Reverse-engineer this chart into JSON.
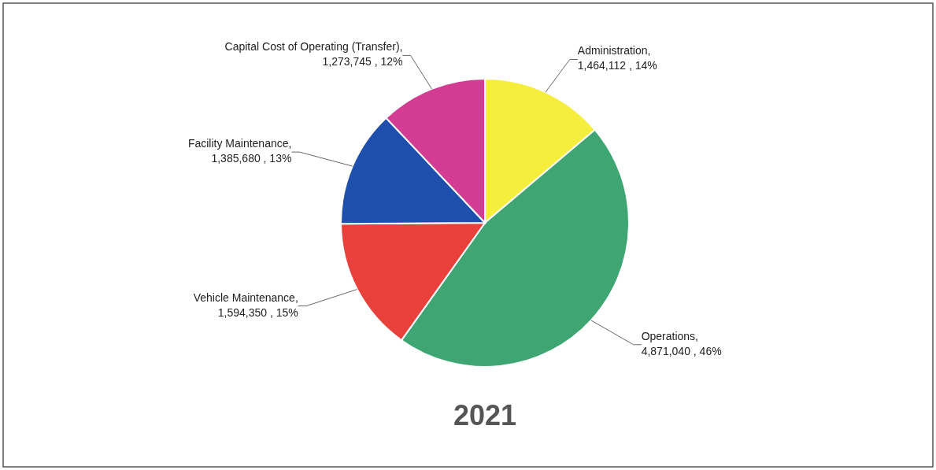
{
  "chart_data": {
    "type": "pie",
    "title": "2021",
    "categories": [
      "Administration",
      "Operations",
      "Vehicle Maintenance",
      "Facility Maintenance",
      "Capital Cost of Operating (Transfer)"
    ],
    "values": [
      1464112,
      4871040,
      1594350,
      1385680,
      1273745
    ],
    "colors": [
      "#f5ee3c",
      "#3fa673",
      "#e8403a",
      "#1f4fad",
      "#d43c93"
    ],
    "value_labels": [
      ", 1,464,112 , 14%",
      ", 4,871,040 , 46%",
      ", 1,594,350 , 15%",
      ", 1,385,680 , 13%",
      ", 1,273,745 , 12%"
    ]
  }
}
